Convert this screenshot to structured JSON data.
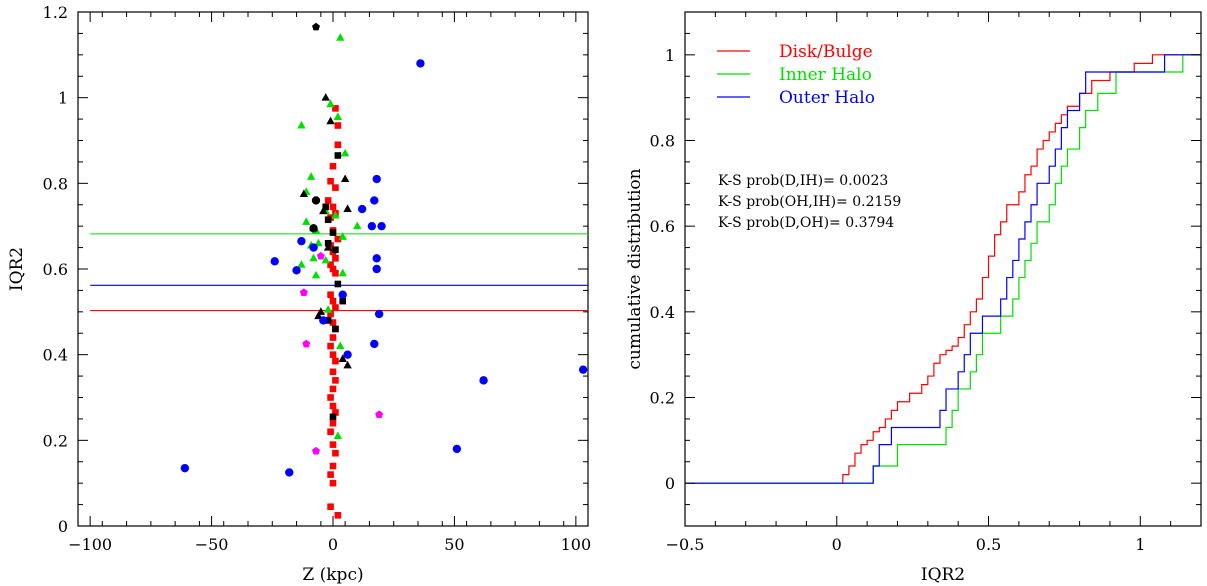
{
  "chart_data": [
    {
      "type": "scatter",
      "xlabel": "Z (kpc)",
      "ylabel": "IQR2",
      "xlim": [
        -105,
        105
      ],
      "ylim": [
        0,
        1.2
      ],
      "xticks": [
        -100,
        -50,
        0,
        50,
        100
      ],
      "xtick_labels": [
        "−100",
        "−50",
        "0",
        "50",
        "100"
      ],
      "yticks": [
        0,
        0.2,
        0.4,
        0.6,
        0.8,
        1,
        1.2
      ],
      "ytick_labels": [
        "0",
        "0.2",
        "0.4",
        "0.6",
        "0.8",
        "1",
        "1.2"
      ],
      "hlines": [
        {
          "y": 0.682,
          "color": "#00e000"
        },
        {
          "y": 0.562,
          "color": "#0000ff"
        },
        {
          "y": 0.503,
          "color": "#ff0000"
        }
      ],
      "series": [
        {
          "marker": "square",
          "color": "#ff0000",
          "points": [
            [
              1,
              0.975
            ],
            [
              2,
              0.935
            ],
            [
              2,
              0.89
            ],
            [
              0,
              0.84
            ],
            [
              -1,
              0.805
            ],
            [
              1,
              0.79
            ],
            [
              -2,
              0.76
            ],
            [
              0,
              0.745
            ],
            [
              1,
              0.73
            ],
            [
              -1,
              0.72
            ],
            [
              0,
              0.69
            ],
            [
              2,
              0.67
            ],
            [
              -1,
              0.655
            ],
            [
              0,
              0.64
            ],
            [
              1,
              0.625
            ],
            [
              -1,
              0.61
            ],
            [
              0,
              0.6
            ],
            [
              1,
              0.59
            ],
            [
              -1,
              0.54
            ],
            [
              0,
              0.525
            ],
            [
              1,
              0.51
            ],
            [
              -1,
              0.495
            ],
            [
              0,
              0.475
            ],
            [
              1,
              0.46
            ],
            [
              0,
              0.44
            ],
            [
              -1,
              0.42
            ],
            [
              0,
              0.4
            ],
            [
              1,
              0.385
            ],
            [
              0,
              0.36
            ],
            [
              1,
              0.34
            ],
            [
              0,
              0.32
            ],
            [
              -1,
              0.3
            ],
            [
              0,
              0.28
            ],
            [
              1,
              0.265
            ],
            [
              0,
              0.24
            ],
            [
              -1,
              0.22
            ],
            [
              0,
              0.19
            ],
            [
              1,
              0.17
            ],
            [
              0,
              0.14
            ],
            [
              -1,
              0.12
            ],
            [
              0,
              0.1
            ],
            [
              -1,
              0.045
            ],
            [
              2,
              0.025
            ]
          ]
        },
        {
          "marker": "triangle",
          "color": "#00e000",
          "points": [
            [
              3,
              1.14
            ],
            [
              -1,
              0.985
            ],
            [
              2,
              0.955
            ],
            [
              -13,
              0.935
            ],
            [
              5,
              0.87
            ],
            [
              -9,
              0.815
            ],
            [
              -11,
              0.78
            ],
            [
              -3,
              0.735
            ],
            [
              1,
              0.725
            ],
            [
              -11,
              0.71
            ],
            [
              -7,
              0.69
            ],
            [
              10,
              0.7
            ],
            [
              4,
              0.675
            ],
            [
              -6,
              0.66
            ],
            [
              -9,
              0.655
            ],
            [
              -8,
              0.625
            ],
            [
              -3,
              0.62
            ],
            [
              -13,
              0.61
            ],
            [
              -7,
              0.585
            ],
            [
              4,
              0.59
            ],
            [
              -2,
              0.505
            ],
            [
              3,
              0.42
            ],
            [
              2,
              0.21
            ]
          ]
        },
        {
          "marker": "triangle",
          "color": "#000000",
          "points": [
            [
              -3,
              1.0
            ],
            [
              -1,
              0.945
            ],
            [
              -12,
              0.775
            ],
            [
              -4,
              0.735
            ],
            [
              5,
              0.81
            ],
            [
              6,
              0.74
            ],
            [
              -8,
              0.695
            ],
            [
              -2,
              0.65
            ],
            [
              -6,
              0.49
            ],
            [
              -5,
              0.5
            ],
            [
              4,
              0.39
            ],
            [
              6,
              0.375
            ]
          ]
        },
        {
          "marker": "circle",
          "color": "#000000",
          "points": [
            [
              -7,
              0.76
            ],
            [
              -8,
              0.695
            ]
          ]
        },
        {
          "marker": "square",
          "color": "#000000",
          "points": [
            [
              2,
              0.865
            ],
            [
              -3,
              0.745
            ],
            [
              -2,
              0.715
            ],
            [
              0,
              0.685
            ],
            [
              -2,
              0.66
            ],
            [
              1,
              0.645
            ],
            [
              2,
              0.565
            ],
            [
              4,
              0.525
            ],
            [
              -2,
              0.48
            ],
            [
              1,
              0.46
            ],
            [
              0,
              0.255
            ]
          ]
        },
        {
          "marker": "pentagon",
          "color": "#000000",
          "points": [
            [
              -7,
              1.165
            ]
          ]
        },
        {
          "marker": "pentagon",
          "color": "#ff00ff",
          "points": [
            [
              -5,
              0.63
            ],
            [
              -12,
              0.545
            ],
            [
              -11,
              0.425
            ],
            [
              -7,
              0.175
            ],
            [
              19,
              0.26
            ]
          ]
        },
        {
          "marker": "circle",
          "color": "#0000ff",
          "points": [
            [
              36,
              1.08
            ],
            [
              18,
              0.81
            ],
            [
              12,
              0.74
            ],
            [
              17,
              0.76
            ],
            [
              20,
              0.7
            ],
            [
              16,
              0.7
            ],
            [
              18,
              0.625
            ],
            [
              18,
              0.6
            ],
            [
              -13,
              0.665
            ],
            [
              -8,
              0.65
            ],
            [
              -24,
              0.618
            ],
            [
              -15,
              0.597
            ],
            [
              4,
              0.54
            ],
            [
              19,
              0.495
            ],
            [
              -4,
              0.48
            ],
            [
              17,
              0.425
            ],
            [
              6,
              0.4
            ],
            [
              62,
              0.34
            ],
            [
              103,
              0.365
            ],
            [
              51,
              0.18
            ],
            [
              -61,
              0.135
            ],
            [
              -18,
              0.125
            ]
          ]
        }
      ]
    },
    {
      "type": "line",
      "xlabel": "IQR2",
      "ylabel": "cumulative distribution",
      "xlim": [
        -0.5,
        1.2
      ],
      "ylim": [
        -0.1,
        1.1
      ],
      "xticks": [
        -0.5,
        0,
        0.5,
        1
      ],
      "xtick_labels": [
        "−0.5",
        "0",
        "0.5",
        "1"
      ],
      "yticks": [
        0,
        0.2,
        0.4,
        0.6,
        0.8,
        1
      ],
      "ytick_labels": [
        "0",
        "0.2",
        "0.4",
        "0.6",
        "0.8",
        "1"
      ],
      "legend_position": "top-left",
      "series": [
        {
          "name": "Disk/Bulge",
          "color": "#ff0000",
          "steps": [
            [
              -0.5,
              0
            ],
            [
              0.02,
              0.02
            ],
            [
              0.04,
              0.04
            ],
            [
              0.06,
              0.07
            ],
            [
              0.08,
              0.09
            ],
            [
              0.1,
              0.1
            ],
            [
              0.12,
              0.12
            ],
            [
              0.14,
              0.13
            ],
            [
              0.16,
              0.15
            ],
            [
              0.18,
              0.17
            ],
            [
              0.2,
              0.19
            ],
            [
              0.24,
              0.21
            ],
            [
              0.28,
              0.23
            ],
            [
              0.3,
              0.25
            ],
            [
              0.32,
              0.28
            ],
            [
              0.34,
              0.3
            ],
            [
              0.36,
              0.31
            ],
            [
              0.38,
              0.32
            ],
            [
              0.4,
              0.34
            ],
            [
              0.42,
              0.37
            ],
            [
              0.44,
              0.4
            ],
            [
              0.46,
              0.43
            ],
            [
              0.48,
              0.48
            ],
            [
              0.5,
              0.53
            ],
            [
              0.52,
              0.58
            ],
            [
              0.54,
              0.61
            ],
            [
              0.56,
              0.65
            ],
            [
              0.6,
              0.68
            ],
            [
              0.62,
              0.72
            ],
            [
              0.64,
              0.74
            ],
            [
              0.66,
              0.78
            ],
            [
              0.68,
              0.8
            ],
            [
              0.7,
              0.82
            ],
            [
              0.72,
              0.84
            ],
            [
              0.74,
              0.86
            ],
            [
              0.76,
              0.88
            ],
            [
              0.8,
              0.91
            ],
            [
              0.84,
              0.94
            ],
            [
              0.9,
              0.96
            ],
            [
              0.98,
              0.98
            ],
            [
              1.04,
              1.0
            ],
            [
              1.2,
              1.0
            ]
          ]
        },
        {
          "name": "Inner Halo",
          "color": "#00e000",
          "steps": [
            [
              -0.5,
              0
            ],
            [
              0.12,
              0.04
            ],
            [
              0.2,
              0.09
            ],
            [
              0.36,
              0.13
            ],
            [
              0.38,
              0.17
            ],
            [
              0.4,
              0.22
            ],
            [
              0.44,
              0.26
            ],
            [
              0.46,
              0.3
            ],
            [
              0.48,
              0.35
            ],
            [
              0.54,
              0.39
            ],
            [
              0.58,
              0.43
            ],
            [
              0.6,
              0.48
            ],
            [
              0.62,
              0.52
            ],
            [
              0.64,
              0.56
            ],
            [
              0.66,
              0.61
            ],
            [
              0.7,
              0.65
            ],
            [
              0.72,
              0.7
            ],
            [
              0.74,
              0.74
            ],
            [
              0.76,
              0.78
            ],
            [
              0.8,
              0.83
            ],
            [
              0.82,
              0.87
            ],
            [
              0.86,
              0.91
            ],
            [
              0.92,
              0.96
            ],
            [
              1.14,
              1.0
            ],
            [
              1.2,
              1.0
            ]
          ]
        },
        {
          "name": "Outer Halo",
          "color": "#0000ff",
          "steps": [
            [
              -0.5,
              0
            ],
            [
              0.12,
              0.04
            ],
            [
              0.14,
              0.09
            ],
            [
              0.18,
              0.13
            ],
            [
              0.34,
              0.17
            ],
            [
              0.36,
              0.22
            ],
            [
              0.4,
              0.26
            ],
            [
              0.42,
              0.3
            ],
            [
              0.44,
              0.35
            ],
            [
              0.48,
              0.39
            ],
            [
              0.54,
              0.43
            ],
            [
              0.56,
              0.48
            ],
            [
              0.58,
              0.52
            ],
            [
              0.6,
              0.57
            ],
            [
              0.62,
              0.61
            ],
            [
              0.64,
              0.65
            ],
            [
              0.66,
              0.7
            ],
            [
              0.7,
              0.74
            ],
            [
              0.72,
              0.78
            ],
            [
              0.74,
              0.83
            ],
            [
              0.76,
              0.87
            ],
            [
              0.8,
              0.91
            ],
            [
              0.82,
              0.96
            ],
            [
              1.08,
              1.0
            ],
            [
              1.2,
              1.0
            ]
          ]
        }
      ],
      "annotations": [
        "K-S prob(D,IH)= 0.0023",
        "K-S prob(OH,IH)= 0.2159",
        "K-S prob(D,OH)= 0.3794"
      ]
    }
  ]
}
